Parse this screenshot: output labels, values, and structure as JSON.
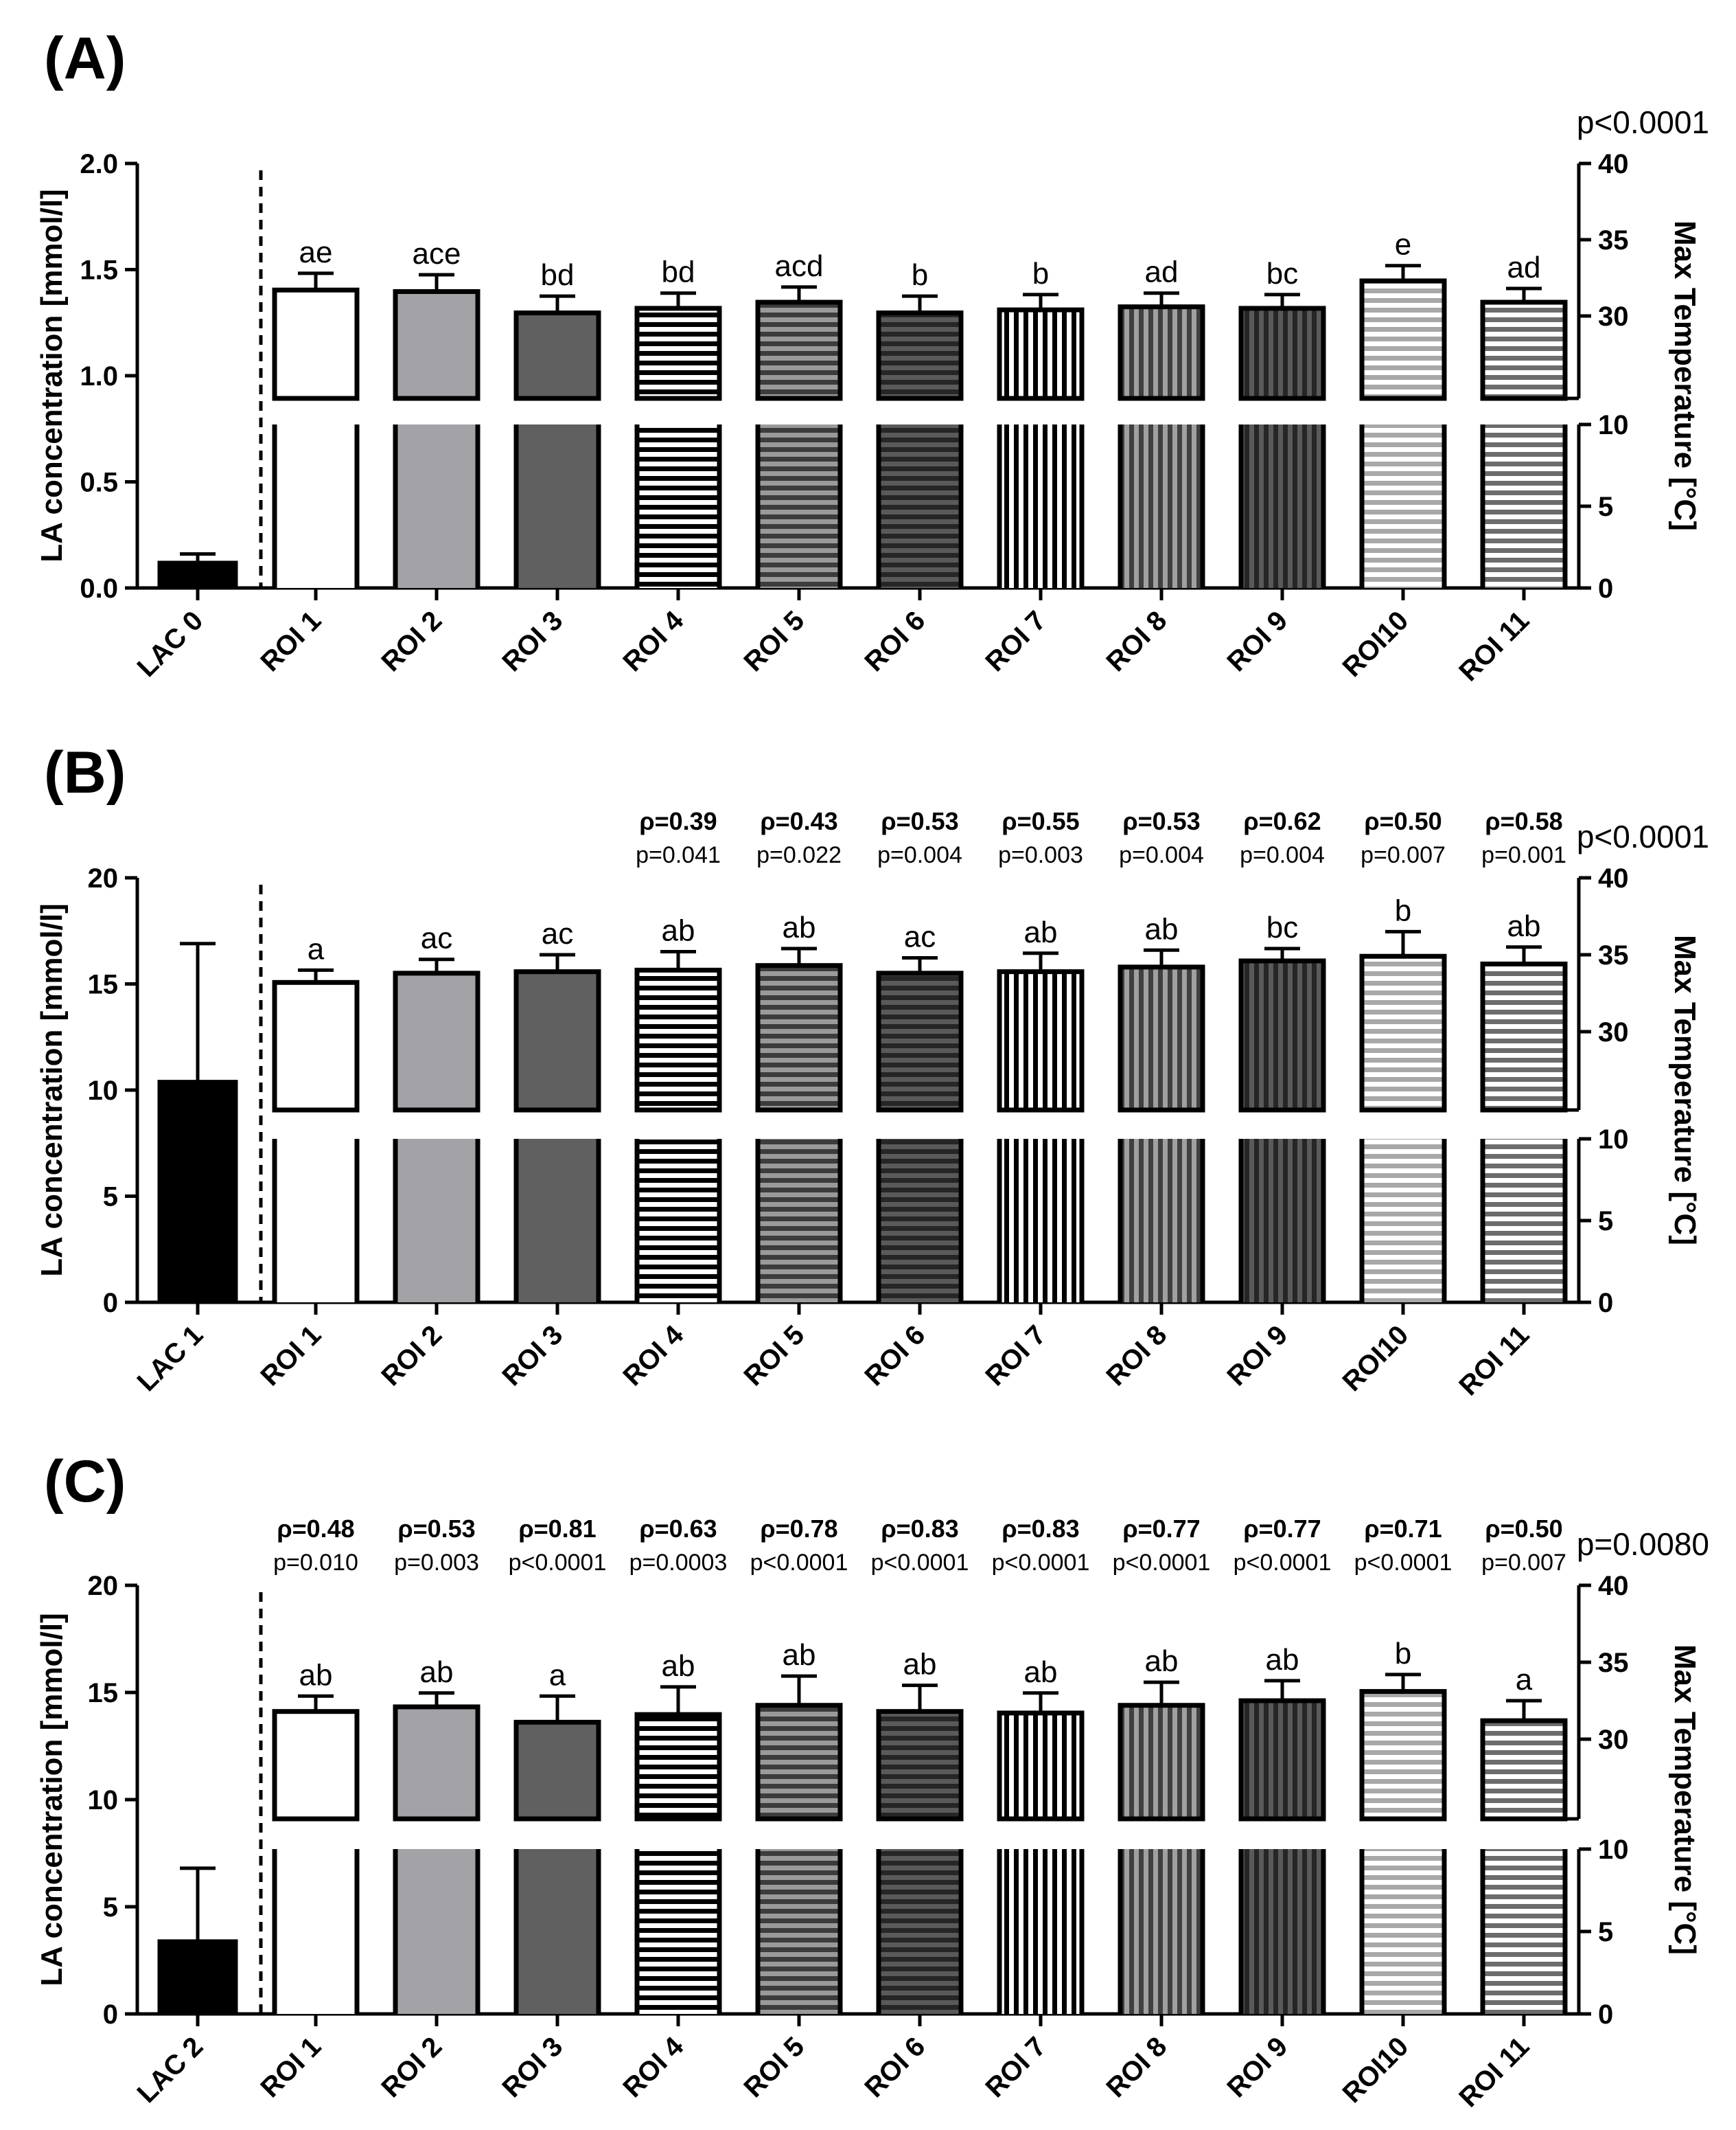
{
  "chart_data": [
    {
      "type": "bar",
      "panel": "(A)",
      "categories": [
        "LAC 0",
        "ROI 1",
        "ROI 2",
        "ROI 3",
        "ROI 4",
        "ROI 5",
        "ROI 6",
        "ROI 7",
        "ROI 8",
        "ROI 9",
        "ROI10",
        "ROI 11"
      ],
      "left_axis": {
        "label": "LA concentration [mmol/l]",
        "range": [
          0,
          2
        ],
        "ticks": [
          "0.0",
          "0.5",
          "1.0",
          "1.5",
          "2.0"
        ]
      },
      "right_axis": {
        "label": "Max Temperature [°C]",
        "segmented": true,
        "lower_range": [
          0,
          10
        ],
        "upper_range": [
          20,
          40
        ],
        "lower_ticks": [
          "0",
          "5",
          "10"
        ],
        "upper_ticks": [
          "30",
          "35",
          "40"
        ]
      },
      "lactate": {
        "value": 0.12,
        "error": 0.04
      },
      "temperature": {
        "values": [
          31.7,
          31.6,
          30.2,
          30.5,
          30.9,
          30.2,
          30.4,
          30.6,
          30.5,
          32.3,
          30.9
        ],
        "errors": [
          1.1,
          1.1,
          1.1,
          1.0,
          1.0,
          1.1,
          1.0,
          0.9,
          0.9,
          1.0,
          0.9
        ],
        "letters": [
          "ae",
          "ace",
          "bd",
          "bd",
          "acd",
          "b",
          "b",
          "ad",
          "bc",
          "e",
          "ad"
        ]
      },
      "overall_p": "p<0.0001",
      "correlations": []
    },
    {
      "type": "bar",
      "panel": "(B)",
      "categories": [
        "LAC 1",
        "ROI 1",
        "ROI 2",
        "ROI 3",
        "ROI 4",
        "ROI 5",
        "ROI 6",
        "ROI 7",
        "ROI 8",
        "ROI 9",
        "ROI10",
        "ROI 11"
      ],
      "left_axis": {
        "label": "LA concentration [mmol/l]",
        "range": [
          0,
          20
        ],
        "ticks": [
          "0",
          "5",
          "10",
          "15",
          "20"
        ]
      },
      "right_axis": {
        "label": "Max Temperature [°C]",
        "segmented": true,
        "lower_range": [
          0,
          10
        ],
        "upper_range": [
          20,
          40
        ],
        "lower_ticks": [
          "0",
          "5",
          "10"
        ],
        "upper_ticks": [
          "30",
          "35",
          "40"
        ]
      },
      "lactate": {
        "value": 10.4,
        "error": 6.5
      },
      "temperature": {
        "values": [
          33.2,
          33.8,
          33.9,
          34.0,
          34.3,
          33.8,
          33.9,
          34.2,
          34.6,
          34.9,
          34.4
        ],
        "errors": [
          0.8,
          0.9,
          1.1,
          1.2,
          1.1,
          1.0,
          1.2,
          1.1,
          0.8,
          1.6,
          1.1
        ],
        "letters": [
          "a",
          "ac",
          "ac",
          "ab",
          "ab",
          "ac",
          "ab",
          "ab",
          "bc",
          "b",
          "ab"
        ]
      },
      "overall_p": "p<0.0001",
      "correlations": [
        {
          "rho": "ρ=0.39",
          "p": "p=0.041"
        },
        {
          "rho": "ρ=0.43",
          "p": "p=0.022"
        },
        {
          "rho": "ρ=0.53",
          "p": "p=0.004"
        },
        {
          "rho": "ρ=0.55",
          "p": "p=0.003"
        },
        {
          "rho": "ρ=0.53",
          "p": "p=0.004"
        },
        {
          "rho": "ρ=0.62",
          "p": "p=0.004"
        },
        {
          "rho": "ρ=0.50",
          "p": "p=0.007"
        },
        {
          "rho": "ρ=0.58",
          "p": "p=0.001"
        }
      ]
    },
    {
      "type": "bar",
      "panel": "(C)",
      "categories": [
        "LAC 2",
        "ROI 1",
        "ROI 2",
        "ROI 3",
        "ROI 4",
        "ROI 5",
        "ROI 6",
        "ROI 7",
        "ROI 8",
        "ROI 9",
        "ROI10",
        "ROI 11"
      ],
      "left_axis": {
        "label": "LA concentration [mmol/l]",
        "range": [
          0,
          20
        ],
        "ticks": [
          "0",
          "5",
          "10",
          "15",
          "20"
        ]
      },
      "right_axis": {
        "label": "Max Temperature [°C]",
        "segmented": true,
        "lower_range": [
          0,
          10
        ],
        "upper_range": [
          20,
          40
        ],
        "lower_ticks": [
          "0",
          "5",
          "10"
        ],
        "upper_ticks": [
          "30",
          "35",
          "40"
        ]
      },
      "lactate": {
        "value": 3.4,
        "error": 3.4
      },
      "temperature": {
        "values": [
          31.8,
          32.1,
          31.1,
          31.6,
          32.2,
          31.8,
          31.7,
          32.2,
          32.5,
          33.1,
          31.2
        ],
        "errors": [
          1.0,
          0.9,
          1.7,
          1.8,
          1.9,
          1.7,
          1.3,
          1.5,
          1.3,
          1.1,
          1.3
        ],
        "letters": [
          "ab",
          "ab",
          "a",
          "ab",
          "ab",
          "ab",
          "ab",
          "ab",
          "ab",
          "b",
          "a"
        ]
      },
      "overall_p": "p=0.0080",
      "correlations": [
        {
          "rho": "ρ=0.48",
          "p": "p=0.010"
        },
        {
          "rho": "ρ=0.53",
          "p": "p=0.003"
        },
        {
          "rho": "ρ=0.81",
          "p": "p<0.0001"
        },
        {
          "rho": "ρ=0.63",
          "p": "p=0.0003"
        },
        {
          "rho": "ρ=0.78",
          "p": "p<0.0001"
        },
        {
          "rho": "ρ=0.83",
          "p": "p<0.0001"
        },
        {
          "rho": "ρ=0.83",
          "p": "p<0.0001"
        },
        {
          "rho": "ρ=0.77",
          "p": "p<0.0001"
        },
        {
          "rho": "ρ=0.77",
          "p": "p<0.0001"
        },
        {
          "rho": "ρ=0.71",
          "p": "p<0.0001"
        },
        {
          "rho": "ρ=0.50",
          "p": "p=0.007"
        }
      ]
    }
  ],
  "bar_styles": [
    {
      "fill": "white",
      "colors": [
        "#ffffff"
      ]
    },
    {
      "fill": "solid",
      "colors": [
        "#a3a3a7"
      ]
    },
    {
      "fill": "solid",
      "colors": [
        "#606060"
      ]
    },
    {
      "fill": "h-stripes",
      "colors": [
        "#ffffff",
        "#000000"
      ]
    },
    {
      "fill": "h-stripes",
      "colors": [
        "#9a9a9a",
        "#3c3c3c"
      ]
    },
    {
      "fill": "h-stripes",
      "colors": [
        "#5a5a5a",
        "#262626"
      ]
    },
    {
      "fill": "v-stripes",
      "colors": [
        "#ffffff",
        "#000000"
      ]
    },
    {
      "fill": "v-stripes",
      "colors": [
        "#a0a0a0",
        "#404040"
      ]
    },
    {
      "fill": "v-stripes",
      "colors": [
        "#5a5a5a",
        "#262626"
      ]
    },
    {
      "fill": "h-stripes",
      "colors": [
        "#a8a8a8",
        "#ffffff"
      ]
    },
    {
      "fill": "h-stripes",
      "colors": [
        "#6c6c6c",
        "#ffffff"
      ]
    }
  ]
}
